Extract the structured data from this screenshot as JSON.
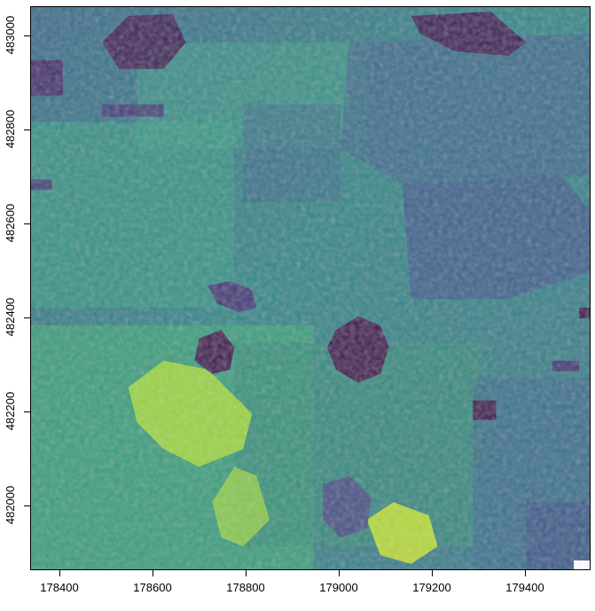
{
  "map": {
    "x_ticks": [
      "178400",
      "178600",
      "178800",
      "179000",
      "179200",
      "179400"
    ],
    "y_ticks": [
      "483000",
      "482800",
      "482600",
      "482400",
      "482200",
      "482000"
    ],
    "x_range": [
      178340,
      179540
    ],
    "y_range": [
      481860,
      483060
    ],
    "palette": [
      "#440154",
      "#3b528b",
      "#21908c",
      "#5dc863",
      "#fde725"
    ],
    "raster_description_colors": {
      "dark": "#440154",
      "blue": "#3b5a8c",
      "teal": "#2f8a8a",
      "green": "#4fae73",
      "yellow": "#c8e024"
    }
  }
}
